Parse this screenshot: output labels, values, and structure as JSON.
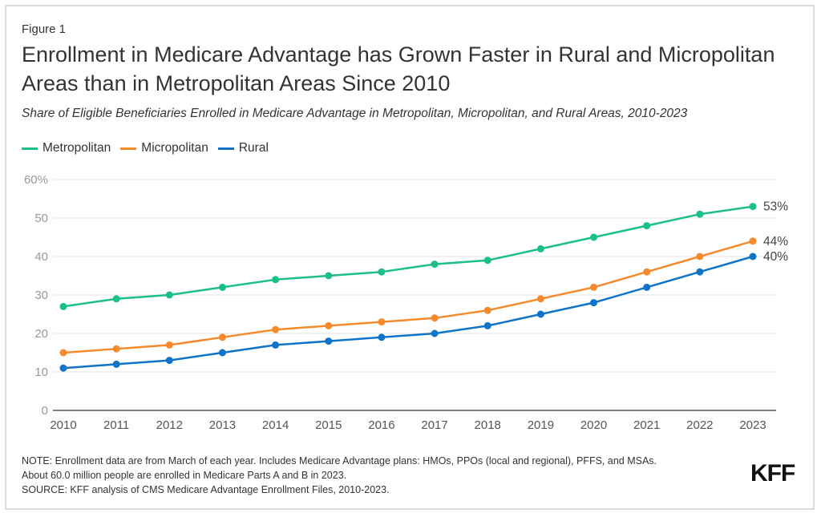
{
  "header": {
    "figure_label": "Figure 1",
    "title": "Enrollment in Medicare Advantage has Grown Faster in Rural and Micropolitan Areas than in Metropolitan Areas Since 2010",
    "subtitle": "Share of Eligible Beneficiaries Enrolled in Medicare Advantage in Metropolitan, Micropolitan, and Rural Areas, 2010-2023"
  },
  "legend": [
    {
      "name": "Metropolitan",
      "color": "#1abf8a"
    },
    {
      "name": "Micropolitan",
      "color": "#f58a2c"
    },
    {
      "name": "Rural",
      "color": "#0f74c8"
    }
  ],
  "chart_data": {
    "type": "line",
    "title": "Enrollment in Medicare Advantage has Grown Faster in Rural and Micropolitan Areas than in Metropolitan Areas Since 2010",
    "subtitle": "Share of Eligible Beneficiaries Enrolled in Medicare Advantage in Metropolitan, Micropolitan, and Rural Areas, 2010-2023",
    "xlabel": "",
    "ylabel": "",
    "x": [
      "2010",
      "2011",
      "2012",
      "2013",
      "2014",
      "2015",
      "2016",
      "2017",
      "2018",
      "2019",
      "2020",
      "2021",
      "2022",
      "2023"
    ],
    "ylim": [
      0,
      60
    ],
    "yticks": [
      0,
      10,
      20,
      30,
      40,
      50,
      60
    ],
    "ytick_labels": [
      "0",
      "10",
      "20",
      "30",
      "40",
      "50",
      "60%"
    ],
    "grid": true,
    "legend_position": "top-left",
    "series": [
      {
        "name": "Metropolitan",
        "color": "#1abf8a",
        "values": [
          27,
          29,
          30,
          32,
          34,
          35,
          36,
          38,
          39,
          42,
          45,
          48,
          51,
          53
        ],
        "end_label": "53%"
      },
      {
        "name": "Micropolitan",
        "color": "#f58a2c",
        "values": [
          15,
          16,
          17,
          19,
          21,
          22,
          23,
          24,
          26,
          29,
          32,
          36,
          40,
          44
        ],
        "end_label": "44%"
      },
      {
        "name": "Rural",
        "color": "#0f74c8",
        "values": [
          11,
          12,
          13,
          15,
          17,
          18,
          19,
          20,
          22,
          25,
          28,
          32,
          36,
          40
        ],
        "end_label": "40%"
      }
    ]
  },
  "footer": {
    "note_line1": "NOTE: Enrollment data are from March of each year. Includes Medicare Advantage plans: HMOs, PPOs (local and regional), PFFS, and MSAs.",
    "note_line2": "About 60.0 million people are enrolled in Medicare Parts A and B in 2023.",
    "source": "SOURCE: KFF analysis of CMS Medicare Advantage Enrollment Files, 2010-2023.",
    "logo": "KFF"
  }
}
